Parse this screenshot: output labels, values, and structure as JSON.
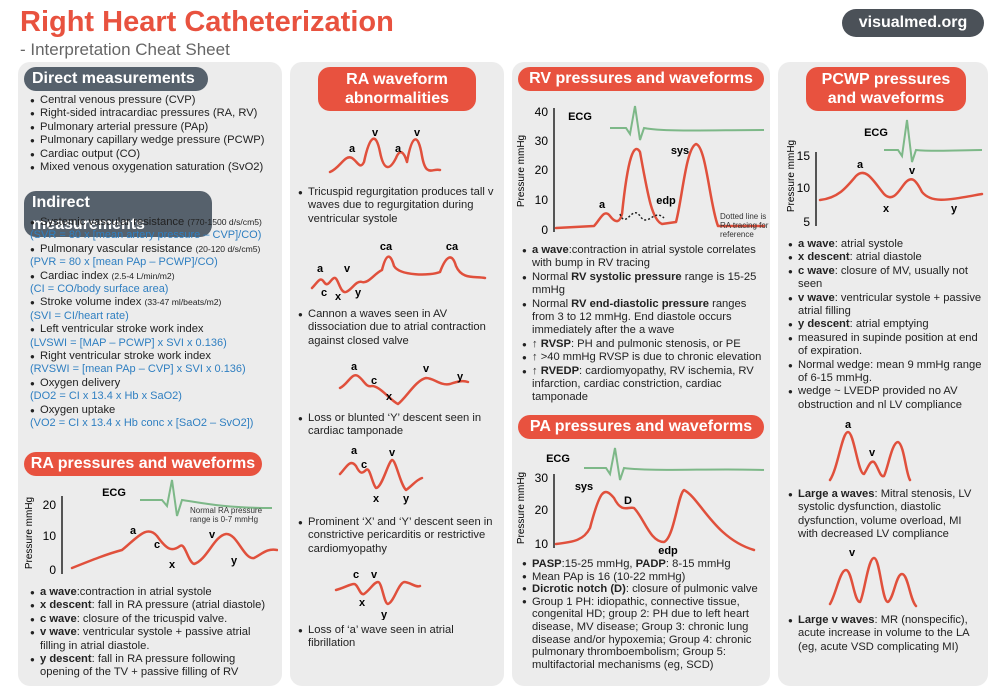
{
  "header": {
    "title": "Right Heart Catheterization",
    "subtitle": "- Interpretation Cheat Sheet",
    "site": "visualmed.org"
  },
  "direct": {
    "heading": "Direct measurements",
    "items": [
      "Central venous pressure (CVP)",
      "Right-sided intracardiac pressures (RA, RV)",
      "Pulmonary arterial pressure (PAp)",
      "Pulmonary capillary wedge pressure (PCWP)",
      "Cardiac output (CO)",
      "Mixed venous oxygenation saturation (SvO2)"
    ]
  },
  "indirect": {
    "heading": "Indirect measurements",
    "items": [
      {
        "name": "Systemic vascular resistance",
        "range": "(770-1500 d/s/cm5)",
        "formula": "(SVR = 80 x [mean artery pressure – CVP]/CO)"
      },
      {
        "name": "Pulmonary vascular resistance",
        "range": "(20-120 d/s/cm5)",
        "formula": "(PVR = 80 x [mean PAp – PCWP]/CO)"
      },
      {
        "name": "Cardiac index",
        "range": "(2.5-4 L/min/m2)",
        "formula": "(CI = CO/body surface area)"
      },
      {
        "name": "Stroke volume index",
        "range": "(33-47 ml/beats/m2)",
        "formula": "(SVI = CI/heart rate)"
      },
      {
        "name": "Left ventricular stroke work index",
        "formula": "(LVSWI = [MAP – PCWP] x SVI x 0.136)"
      },
      {
        "name": "Right ventricular stroke work index",
        "formula": "(RVSWI = [mean PAp – CVP] x SVI x 0.136)"
      },
      {
        "name": "Oxygen delivery",
        "formula": "(DO2 = CI x 13.4 x Hb x SaO2)"
      },
      {
        "name": "Oxygen uptake",
        "formula": "(VO2 = CI x 13.4 x Hb conc x [SaO2 – SvO2])"
      }
    ]
  },
  "ra": {
    "heading": "RA pressures and waveforms",
    "graph": {
      "axis_label": "Pressure mmHg",
      "ticks": [
        20,
        10,
        0
      ],
      "labels": [
        "ECG",
        "a",
        "c",
        "x",
        "v",
        "y"
      ],
      "note": "Normal RA pressure range is 0-7 mmHg"
    },
    "items": [
      [
        {
          "b": "a wave"
        },
        ":contraction in atrial systole"
      ],
      [
        {
          "b": "x descent"
        },
        ": fall in RA pressure (atrial diastole)"
      ],
      [
        {
          "b": "c wave"
        },
        ": closure of the tricuspid valve."
      ],
      [
        {
          "b": "v wave"
        },
        ": ventricular systole + passive atrial filling in atrial diastole."
      ],
      [
        {
          "b": "y descent"
        },
        ": fall in RA pressure following opening of the TV + passive filling of RV"
      ]
    ]
  },
  "ra_abnormal": {
    "heading": "RA waveform abnormalities",
    "blocks": [
      {
        "labels": [
          "a",
          "v",
          "a",
          "v"
        ],
        "items": [
          "Tricuspid regurgitation produces tall v waves due to regurgitation during ventricular systole"
        ]
      },
      {
        "labels": [
          "a",
          "v",
          "c",
          "x",
          "y",
          "ca",
          "ca"
        ],
        "items": [
          "Cannon a waves seen in AV dissociation due to atrial contraction against closed valve"
        ]
      },
      {
        "labels": [
          "a",
          "c",
          "x",
          "v",
          "y"
        ],
        "items": [
          "Loss or blunted ‘Y’ descent seen in cardiac tamponade"
        ]
      },
      {
        "labels": [
          "a",
          "c",
          "v",
          "x",
          "y"
        ],
        "items": [
          "Prominent ‘X’ and ‘Y’ descent seen in constrictive pericarditis or restrictive cardiomyopathy"
        ]
      },
      {
        "labels": [
          "c",
          "v",
          "x",
          "y"
        ],
        "items": [
          "Loss of ‘a’ wave seen in atrial fibrillation"
        ]
      }
    ]
  },
  "rv": {
    "heading": "RV pressures and waveforms",
    "graph": {
      "axis_label": "Pressure mmHg",
      "ticks": [
        40,
        30,
        20,
        10,
        0
      ],
      "labels": [
        "ECG",
        "a",
        "sys",
        "edp"
      ],
      "note": "Dotted line is RA tracing for reference"
    },
    "items": [
      [
        {
          "b": "a wave"
        },
        ":contraction in atrial systole correlates with bump in RV tracing"
      ],
      [
        "Normal ",
        {
          "b": "RV systolic pressure"
        },
        " range is 15-25 mmHg"
      ],
      [
        "Normal ",
        {
          "b": "RV end-diastolic pressure"
        },
        " ranges from 3 to 12 mmHg. End diastole occurs immediately after the a wave"
      ],
      [
        "↑ ",
        {
          "b": "RVSP"
        },
        ": PH and pulmonic stenosis, or PE"
      ],
      "↑ >40 mmHg RVSP is due to chronic elevation",
      [
        "↑ ",
        {
          "b": "RVEDP"
        },
        ": cardiomyopathy, RV ischemia, RV infarction, cardiac constriction, cardiac tamponade"
      ]
    ]
  },
  "pa": {
    "heading": "PA pressures and waveforms",
    "graph": {
      "axis_label": "Pressure mmHg",
      "ticks": [
        30,
        20,
        10
      ],
      "labels": [
        "ECG",
        "sys",
        "D",
        "edp"
      ]
    },
    "items": [
      [
        {
          "b": "PASP"
        },
        ":15-25 mmHg, ",
        {
          "b": "PADP"
        },
        ": 8-15 mmHg"
      ],
      "Mean PAp is 16 (10-22 mmHg)",
      [
        {
          "b": "Dicrotic notch (D)"
        },
        ": closure of pulmonic valve"
      ],
      "Group 1 PH: idiopathic, connective tissue, congenital HD; group 2: PH due to left heart disease, MV disease; Group 3: chronic lung disease and/or hypoxemia; Group 4: chronic pulmonary thromboembolism; Group 5: multifactorial mechanisms (eg, SCD)"
    ]
  },
  "pcwp": {
    "heading": "PCWP pressures and waveforms",
    "graph": {
      "axis_label": "Pressure mmHg",
      "ticks": [
        15,
        10,
        5
      ],
      "labels": [
        "ECG",
        "a",
        "v",
        "x",
        "y"
      ]
    },
    "items": [
      [
        {
          "b": "a wave"
        },
        ": atrial systole"
      ],
      [
        {
          "b": "x descent"
        },
        ": atrial diastole"
      ],
      [
        {
          "b": "c wave"
        },
        ": closure of MV, usually not seen"
      ],
      [
        {
          "b": "v wave"
        },
        ": ventricular systole + passive atrial filling"
      ],
      [
        {
          "b": "y descent"
        },
        ": atrial emptying"
      ],
      "measured in supinde position at end of expiration.",
      "Normal wedge: mean 9 mmHg range of 6-15 mmHg.",
      "wedge ~ LVEDP provided no AV obstruction and nl LV compliance"
    ],
    "blocks": [
      {
        "labels": [
          "a",
          "v"
        ],
        "items": [
          [
            {
              "b": "Large a waves"
            },
            ": Mitral stenosis, LV systolic dysfunction, diastolic dysfunction, volume overload, MI with decreased LV compliance"
          ]
        ]
      },
      {
        "labels": [
          "v"
        ],
        "items": [
          [
            {
              "b": "Large v waves"
            },
            ": MR (nonspecific), acute increase in volume to the LA (eg, acute VSD complicating MI)"
          ]
        ]
      }
    ]
  }
}
